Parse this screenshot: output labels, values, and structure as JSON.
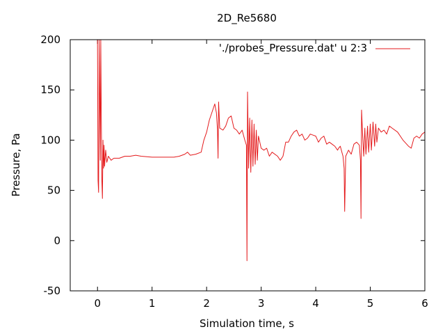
{
  "chart_data": {
    "type": "line",
    "title": "2D_Re5680",
    "xlabel": "Simulation time, s",
    "ylabel": "Pressure, Pa",
    "xlim": [
      -0.5,
      6
    ],
    "ylim": [
      -50,
      200
    ],
    "xticks": [
      0,
      1,
      2,
      3,
      4,
      5,
      6
    ],
    "yticks": [
      -50,
      0,
      50,
      100,
      150,
      200
    ],
    "grid": false,
    "legend_position": "top-right",
    "series": [
      {
        "name": "'./probes_Pressure.dat' u 2:3",
        "color": "#e41a1c",
        "points": [
          [
            0.0,
            200
          ],
          [
            0.01,
            60
          ],
          [
            0.02,
            48
          ],
          [
            0.03,
            200
          ],
          [
            0.04,
            140
          ],
          [
            0.05,
            80
          ],
          [
            0.06,
            200
          ],
          [
            0.07,
            120
          ],
          [
            0.08,
            60
          ],
          [
            0.09,
            42
          ],
          [
            0.1,
            100
          ],
          [
            0.11,
            72
          ],
          [
            0.12,
            95
          ],
          [
            0.13,
            74
          ],
          [
            0.15,
            90
          ],
          [
            0.17,
            78
          ],
          [
            0.2,
            84
          ],
          [
            0.25,
            80
          ],
          [
            0.3,
            82
          ],
          [
            0.4,
            82
          ],
          [
            0.5,
            84
          ],
          [
            0.6,
            84
          ],
          [
            0.7,
            85
          ],
          [
            0.8,
            84
          ],
          [
            1.0,
            83
          ],
          [
            1.2,
            83
          ],
          [
            1.4,
            83
          ],
          [
            1.5,
            84
          ],
          [
            1.6,
            86
          ],
          [
            1.65,
            88
          ],
          [
            1.7,
            85
          ],
          [
            1.8,
            86
          ],
          [
            1.9,
            88
          ],
          [
            1.95,
            100
          ],
          [
            2.0,
            108
          ],
          [
            2.05,
            120
          ],
          [
            2.1,
            128
          ],
          [
            2.15,
            136
          ],
          [
            2.18,
            127
          ],
          [
            2.2,
            110
          ],
          [
            2.21,
            82
          ],
          [
            2.22,
            138
          ],
          [
            2.24,
            112
          ],
          [
            2.3,
            110
          ],
          [
            2.35,
            114
          ],
          [
            2.4,
            122
          ],
          [
            2.45,
            124
          ],
          [
            2.5,
            112
          ],
          [
            2.55,
            110
          ],
          [
            2.6,
            106
          ],
          [
            2.65,
            110
          ],
          [
            2.7,
            100
          ],
          [
            2.73,
            95
          ],
          [
            2.74,
            -20
          ],
          [
            2.75,
            148
          ],
          [
            2.77,
            72
          ],
          [
            2.79,
            122
          ],
          [
            2.81,
            68
          ],
          [
            2.83,
            120
          ],
          [
            2.85,
            74
          ],
          [
            2.87,
            116
          ],
          [
            2.89,
            76
          ],
          [
            2.91,
            110
          ],
          [
            2.93,
            80
          ],
          [
            2.95,
            104
          ],
          [
            3.0,
            92
          ],
          [
            3.05,
            90
          ],
          [
            3.1,
            92
          ],
          [
            3.15,
            84
          ],
          [
            3.2,
            88
          ],
          [
            3.3,
            84
          ],
          [
            3.35,
            80
          ],
          [
            3.4,
            84
          ],
          [
            3.45,
            98
          ],
          [
            3.5,
            98
          ],
          [
            3.55,
            104
          ],
          [
            3.6,
            108
          ],
          [
            3.65,
            110
          ],
          [
            3.7,
            104
          ],
          [
            3.75,
            106
          ],
          [
            3.8,
            100
          ],
          [
            3.85,
            102
          ],
          [
            3.9,
            106
          ],
          [
            3.95,
            105
          ],
          [
            4.0,
            104
          ],
          [
            4.05,
            98
          ],
          [
            4.1,
            102
          ],
          [
            4.15,
            104
          ],
          [
            4.2,
            96
          ],
          [
            4.25,
            98
          ],
          [
            4.3,
            96
          ],
          [
            4.35,
            94
          ],
          [
            4.4,
            90
          ],
          [
            4.42,
            92
          ],
          [
            4.45,
            94
          ],
          [
            4.48,
            88
          ],
          [
            4.5,
            84
          ],
          [
            4.52,
            72
          ],
          [
            4.53,
            29
          ],
          [
            4.55,
            84
          ],
          [
            4.6,
            90
          ],
          [
            4.65,
            86
          ],
          [
            4.7,
            96
          ],
          [
            4.75,
            98
          ],
          [
            4.8,
            95
          ],
          [
            4.82,
            80
          ],
          [
            4.83,
            22
          ],
          [
            4.84,
            130
          ],
          [
            4.86,
            104
          ],
          [
            4.88,
            84
          ],
          [
            4.9,
            112
          ],
          [
            4.92,
            86
          ],
          [
            4.95,
            114
          ],
          [
            4.97,
            88
          ],
          [
            5.0,
            116
          ],
          [
            5.02,
            90
          ],
          [
            5.05,
            118
          ],
          [
            5.08,
            94
          ],
          [
            5.1,
            116
          ],
          [
            5.12,
            98
          ],
          [
            5.15,
            112
          ],
          [
            5.2,
            108
          ],
          [
            5.25,
            110
          ],
          [
            5.3,
            106
          ],
          [
            5.35,
            114
          ],
          [
            5.4,
            112
          ],
          [
            5.5,
            108
          ],
          [
            5.6,
            100
          ],
          [
            5.7,
            94
          ],
          [
            5.75,
            92
          ],
          [
            5.8,
            102
          ],
          [
            5.85,
            104
          ],
          [
            5.9,
            102
          ],
          [
            5.95,
            106
          ],
          [
            6.0,
            108
          ]
        ]
      }
    ]
  }
}
